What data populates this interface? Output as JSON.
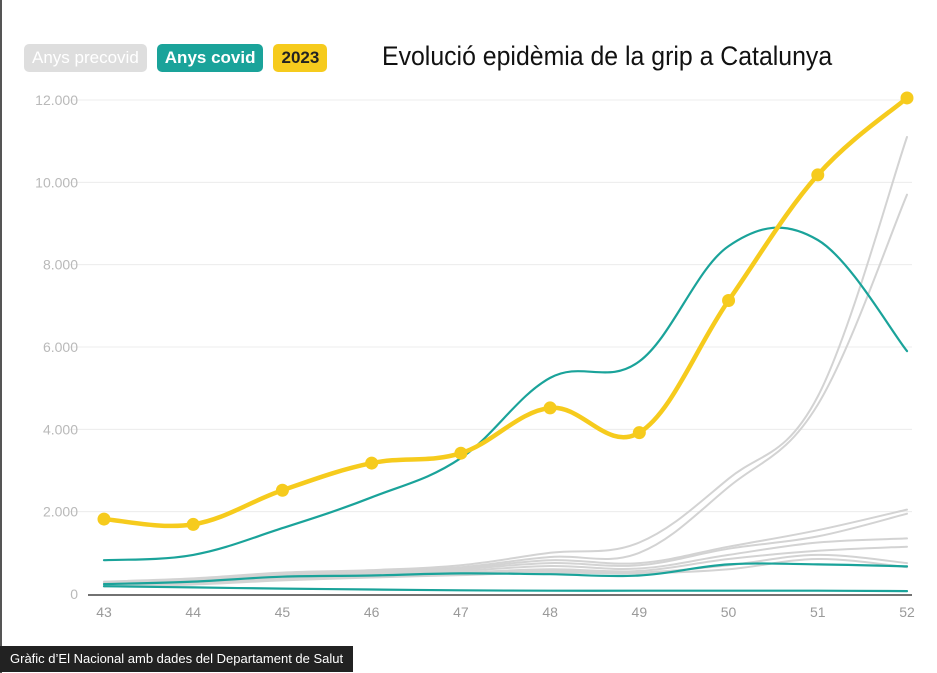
{
  "legend": {
    "precovid": "Anys precovid",
    "covid": "Anys covid",
    "y2023": "2023"
  },
  "title": "Evolució epidèmia de la grip a Catalunya",
  "source": "Gràfic d’El Nacional amb dades del Departament de Salut",
  "colors": {
    "precovid": "#d3d3d3",
    "covid": "#1aa39a",
    "y2023": "#f6cb1d"
  },
  "chart_data": {
    "type": "line",
    "title": "Evolució epidèmia de la grip a Catalunya",
    "xlabel": "",
    "ylabel": "",
    "x": [
      43,
      44,
      45,
      46,
      47,
      48,
      49,
      50,
      51,
      52
    ],
    "x_tick_labels": [
      "43",
      "44",
      "45",
      "46",
      "47",
      "48",
      "49",
      "50",
      "51",
      "52"
    ],
    "y_ticks": [
      0,
      2000,
      4000,
      6000,
      8000,
      10000,
      12000
    ],
    "y_tick_labels": [
      "0",
      "2.000",
      "4.000",
      "6.000",
      "8.000",
      "10.000",
      "12.000"
    ],
    "ylim": [
      0,
      12000
    ],
    "grid": true,
    "legend_position": "top-left",
    "series": [
      {
        "name": "2023",
        "group": "y2023",
        "markers": true,
        "values": [
          1820,
          1690,
          2520,
          3180,
          3420,
          4520,
          3920,
          7130,
          10180,
          12050
        ]
      },
      {
        "group": "covid",
        "values": [
          820,
          950,
          1600,
          2350,
          3300,
          5250,
          5650,
          8450,
          8600,
          5900
        ]
      },
      {
        "group": "covid",
        "values": [
          240,
          300,
          420,
          450,
          500,
          480,
          450,
          720,
          720,
          670
        ]
      },
      {
        "group": "covid",
        "values": [
          190,
          160,
          130,
          110,
          90,
          80,
          80,
          80,
          80,
          70
        ]
      },
      {
        "group": "precovid",
        "values": [
          300,
          380,
          520,
          580,
          700,
          1000,
          1250,
          2800,
          4800,
          11100
        ]
      },
      {
        "group": "precovid",
        "values": [
          270,
          340,
          480,
          550,
          650,
          900,
          1000,
          2600,
          4600,
          9700
        ]
      },
      {
        "group": "precovid",
        "values": [
          250,
          320,
          440,
          520,
          620,
          820,
          750,
          1150,
          1550,
          2050
        ]
      },
      {
        "group": "precovid",
        "values": [
          230,
          300,
          420,
          500,
          600,
          750,
          700,
          1100,
          1400,
          1950
        ]
      },
      {
        "group": "precovid",
        "values": [
          210,
          280,
          400,
          480,
          560,
          680,
          620,
          950,
          1250,
          1350
        ]
      },
      {
        "group": "precovid",
        "values": [
          200,
          260,
          380,
          450,
          520,
          600,
          560,
          850,
          1050,
          1150
        ]
      },
      {
        "group": "precovid",
        "values": [
          190,
          240,
          350,
          420,
          480,
          560,
          520,
          700,
          950,
          750
        ]
      },
      {
        "group": "precovid",
        "values": [
          180,
          230,
          330,
          400,
          460,
          520,
          500,
          600,
          850,
          650
        ]
      }
    ]
  }
}
